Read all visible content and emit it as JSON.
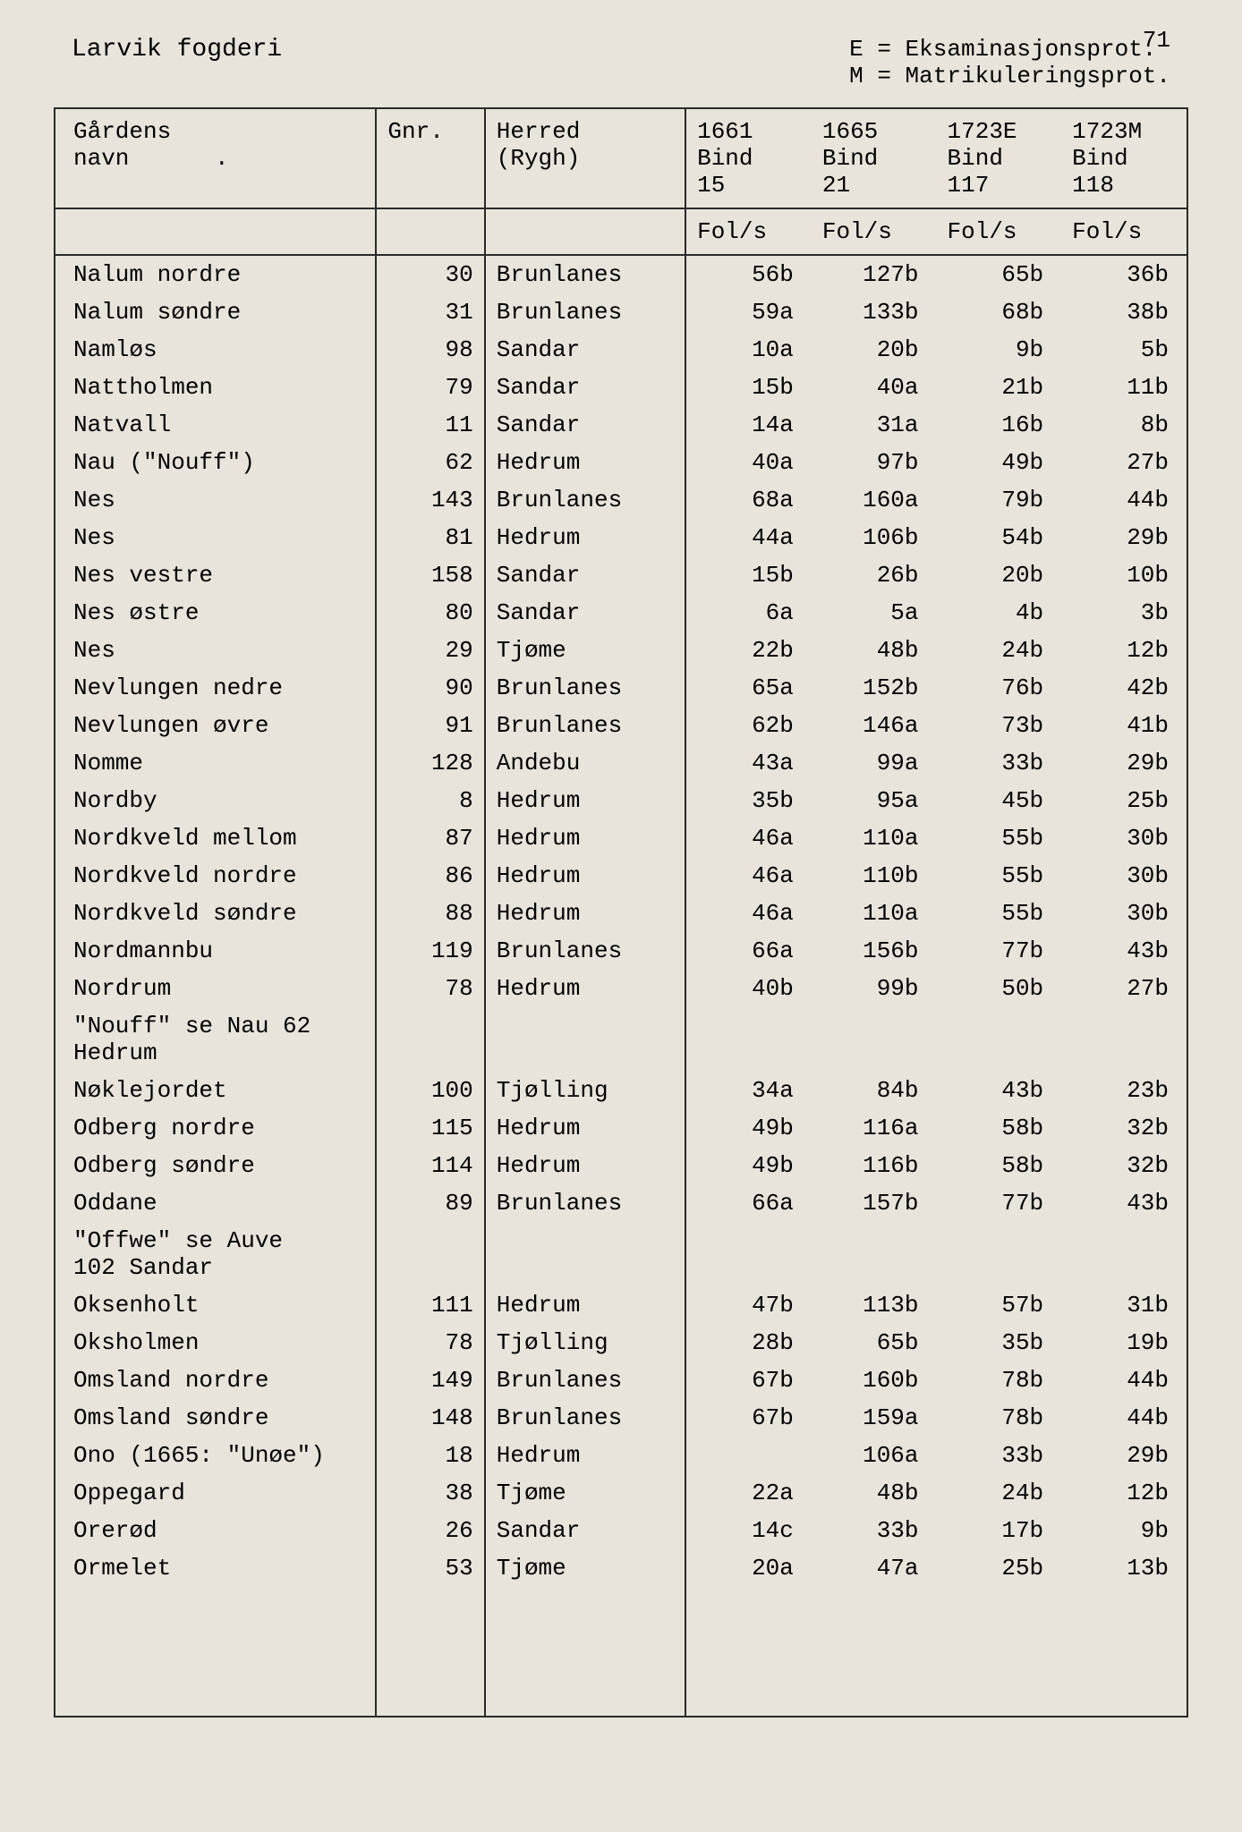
{
  "page_number": "71",
  "title_left": "Larvik fogderi",
  "legend": {
    "e": "E = Eksaminasjonsprot.",
    "m": "M = Matrikuleringsprot."
  },
  "columns": {
    "name": "Gårdens\nnavn",
    "gnr": "Gnr.",
    "herred": "Herred\n(Rygh)",
    "c1661": "1661\nBind\n15",
    "c1665": "1665\nBind\n21",
    "c1723e": "1723E\nBind\n117",
    "c1723m": "1723M\nBind\n118"
  },
  "subheader": "Fol/s",
  "rows": [
    {
      "name": "Nalum nordre",
      "gnr": "30",
      "herred": "Brunlanes",
      "v": [
        "56b",
        "127b",
        "65b",
        "36b"
      ]
    },
    {
      "name": "Nalum søndre",
      "gnr": "31",
      "herred": "Brunlanes",
      "v": [
        "59a",
        "133b",
        "68b",
        "38b"
      ]
    },
    {
      "name": "Namløs",
      "gnr": "98",
      "herred": "Sandar",
      "v": [
        "10a",
        "20b",
        "9b",
        "5b"
      ]
    },
    {
      "name": "Nattholmen",
      "gnr": "79",
      "herred": "Sandar",
      "v": [
        "15b",
        "40a",
        "21b",
        "11b"
      ]
    },
    {
      "name": "Natvall",
      "gnr": "11",
      "herred": "Sandar",
      "v": [
        "14a",
        "31a",
        "16b",
        "8b"
      ]
    },
    {
      "name": "Nau (\"Nouff\")",
      "gnr": "62",
      "herred": "Hedrum",
      "v": [
        "40a",
        "97b",
        "49b",
        "27b"
      ]
    },
    {
      "name": "Nes",
      "gnr": "143",
      "herred": "Brunlanes",
      "v": [
        "68a",
        "160a",
        "79b",
        "44b"
      ]
    },
    {
      "name": "Nes",
      "gnr": "81",
      "herred": "Hedrum",
      "v": [
        "44a",
        "106b",
        "54b",
        "29b"
      ]
    },
    {
      "name": "Nes vestre",
      "gnr": "158",
      "herred": "Sandar",
      "v": [
        "15b",
        "26b",
        "20b",
        "10b"
      ]
    },
    {
      "name": "Nes østre",
      "gnr": "80",
      "herred": "Sandar",
      "v": [
        "6a",
        "5a",
        "4b",
        "3b"
      ]
    },
    {
      "name": "Nes",
      "gnr": "29",
      "herred": "Tjøme",
      "v": [
        "22b",
        "48b",
        "24b",
        "12b"
      ]
    },
    {
      "name": "Nevlungen nedre",
      "gnr": "90",
      "herred": "Brunlanes",
      "v": [
        "65a",
        "152b",
        "76b",
        "42b"
      ]
    },
    {
      "name": "Nevlungen øvre",
      "gnr": "91",
      "herred": "Brunlanes",
      "v": [
        "62b",
        "146a",
        "73b",
        "41b"
      ]
    },
    {
      "name": "Nomme",
      "gnr": "128",
      "herred": "Andebu",
      "v": [
        "43a",
        "99a",
        "33b",
        "29b"
      ]
    },
    {
      "name": "Nordby",
      "gnr": "8",
      "herred": "Hedrum",
      "v": [
        "35b",
        "95a",
        "45b",
        "25b"
      ]
    },
    {
      "name": "Nordkveld mellom",
      "gnr": "87",
      "herred": "Hedrum",
      "v": [
        "46a",
        "110a",
        "55b",
        "30b"
      ]
    },
    {
      "name": "Nordkveld nordre",
      "gnr": "86",
      "herred": "Hedrum",
      "v": [
        "46a",
        "110b",
        "55b",
        "30b"
      ]
    },
    {
      "name": "Nordkveld søndre",
      "gnr": "88",
      "herred": "Hedrum",
      "v": [
        "46a",
        "110a",
        "55b",
        "30b"
      ]
    },
    {
      "name": "Nordmannbu",
      "gnr": "119",
      "herred": "Brunlanes",
      "v": [
        "66a",
        "156b",
        "77b",
        "43b"
      ]
    },
    {
      "name": "Nordrum",
      "gnr": "78",
      "herred": "Hedrum",
      "v": [
        "40b",
        "99b",
        "50b",
        "27b"
      ]
    },
    {
      "name": "\"Nouff\" se Nau 62\nHedrum",
      "gnr": "",
      "herred": "",
      "v": [
        "",
        "",
        "",
        ""
      ]
    },
    {
      "name": "Nøklejordet",
      "gnr": "100",
      "herred": "Tjølling",
      "v": [
        "34a",
        "84b",
        "43b",
        "23b"
      ]
    },
    {
      "name": "Odberg nordre",
      "gnr": "115",
      "herred": "Hedrum",
      "v": [
        "49b",
        "116a",
        "58b",
        "32b"
      ]
    },
    {
      "name": "Odberg søndre",
      "gnr": "114",
      "herred": "Hedrum",
      "v": [
        "49b",
        "116b",
        "58b",
        "32b"
      ]
    },
    {
      "name": "Oddane",
      "gnr": "89",
      "herred": "Brunlanes",
      "v": [
        "66a",
        "157b",
        "77b",
        "43b"
      ]
    },
    {
      "name": "\"Offwe\" se Auve\n102 Sandar",
      "gnr": "",
      "herred": "",
      "v": [
        "",
        "",
        "",
        ""
      ]
    },
    {
      "name": "Oksenholt",
      "gnr": "111",
      "herred": "Hedrum",
      "v": [
        "47b",
        "113b",
        "57b",
        "31b"
      ]
    },
    {
      "name": "Oksholmen",
      "gnr": "78",
      "herred": "Tjølling",
      "v": [
        "28b",
        "65b",
        "35b",
        "19b"
      ]
    },
    {
      "name": "Omsland nordre",
      "gnr": "149",
      "herred": "Brunlanes",
      "v": [
        "67b",
        "160b",
        "78b",
        "44b"
      ]
    },
    {
      "name": "Omsland søndre",
      "gnr": "148",
      "herred": "Brunlanes",
      "v": [
        "67b",
        "159a",
        "78b",
        "44b"
      ]
    },
    {
      "name": "Ono (1665: \"Unøe\")",
      "gnr": "18",
      "herred": "Hedrum",
      "v": [
        "",
        "106a",
        "33b",
        "29b"
      ]
    },
    {
      "name": "Oppegard",
      "gnr": "38",
      "herred": "Tjøme",
      "v": [
        "22a",
        "48b",
        "24b",
        "12b"
      ]
    },
    {
      "name": "Orerød",
      "gnr": "26",
      "herred": "Sandar",
      "v": [
        "14c",
        "33b",
        "17b",
        "9b"
      ]
    },
    {
      "name": "Ormelet",
      "gnr": "53",
      "herred": "Tjøme",
      "v": [
        "20a",
        "47a",
        "25b",
        "13b"
      ]
    }
  ]
}
